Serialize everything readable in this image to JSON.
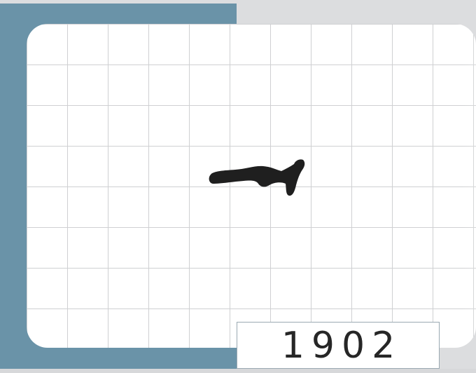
{
  "year_label": "1902",
  "colors": {
    "frame": "#6a93a8",
    "background": "#dcdddf",
    "card": "#ffffff",
    "grid_line": "#cfd0d2",
    "silhouette": "#1f1f1f",
    "year_text": "#262626"
  },
  "icons": {
    "silhouette": "stylized-figure-silhouette"
  }
}
